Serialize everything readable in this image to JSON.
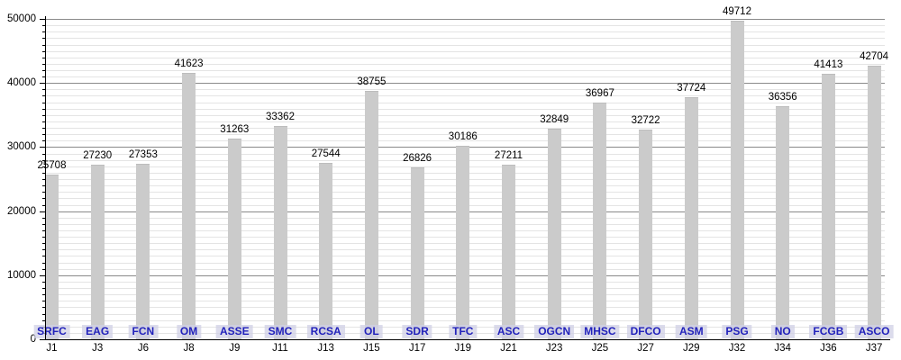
{
  "chart": {
    "background": "#ffffff",
    "colors": {
      "bar_fill": "#cbcbcb",
      "bar_border": "#bdbdbd",
      "grid_major": "#8a8a8a",
      "grid_minor": "#e4e4e4",
      "axis": "#000000",
      "value_label": "#000000",
      "category_label": "#000000",
      "club_label_text": "#2222bb",
      "club_label_bg": "rgba(208,208,230,0.75)"
    },
    "chart_data": {
      "type": "bar",
      "title": "",
      "xlabel": "",
      "ylabel": "",
      "ylim": [
        0,
        50000
      ],
      "y_major_step": 10000,
      "y_minor_step": 1000,
      "y_tick_labels": [
        "0",
        "10000",
        "20000",
        "30000",
        "40000",
        "50000"
      ],
      "grid": "horizontal major+minor, no legend",
      "legend": "none",
      "categories": [
        "J1",
        "J3",
        "J6",
        "J8",
        "J9",
        "J11",
        "J13",
        "J15",
        "J17",
        "J19",
        "J21",
        "J23",
        "J25",
        "J27",
        "J29",
        "J32",
        "J34",
        "J36",
        "J37"
      ],
      "club_codes": [
        "SRFC",
        "EAG",
        "FCN",
        "OM",
        "ASSE",
        "SMC",
        "RCSA",
        "OL",
        "SDR",
        "TFC",
        "ASC",
        "OGCN",
        "MHSC",
        "DFCO",
        "ASM",
        "PSG",
        "NO",
        "FCGB",
        "ASCO"
      ],
      "values": [
        25708,
        27230,
        27353,
        41623,
        31263,
        33362,
        27544,
        38755,
        26826,
        30186,
        27211,
        32849,
        36967,
        32722,
        37724,
        49712,
        36356,
        41413,
        42704
      ]
    }
  }
}
